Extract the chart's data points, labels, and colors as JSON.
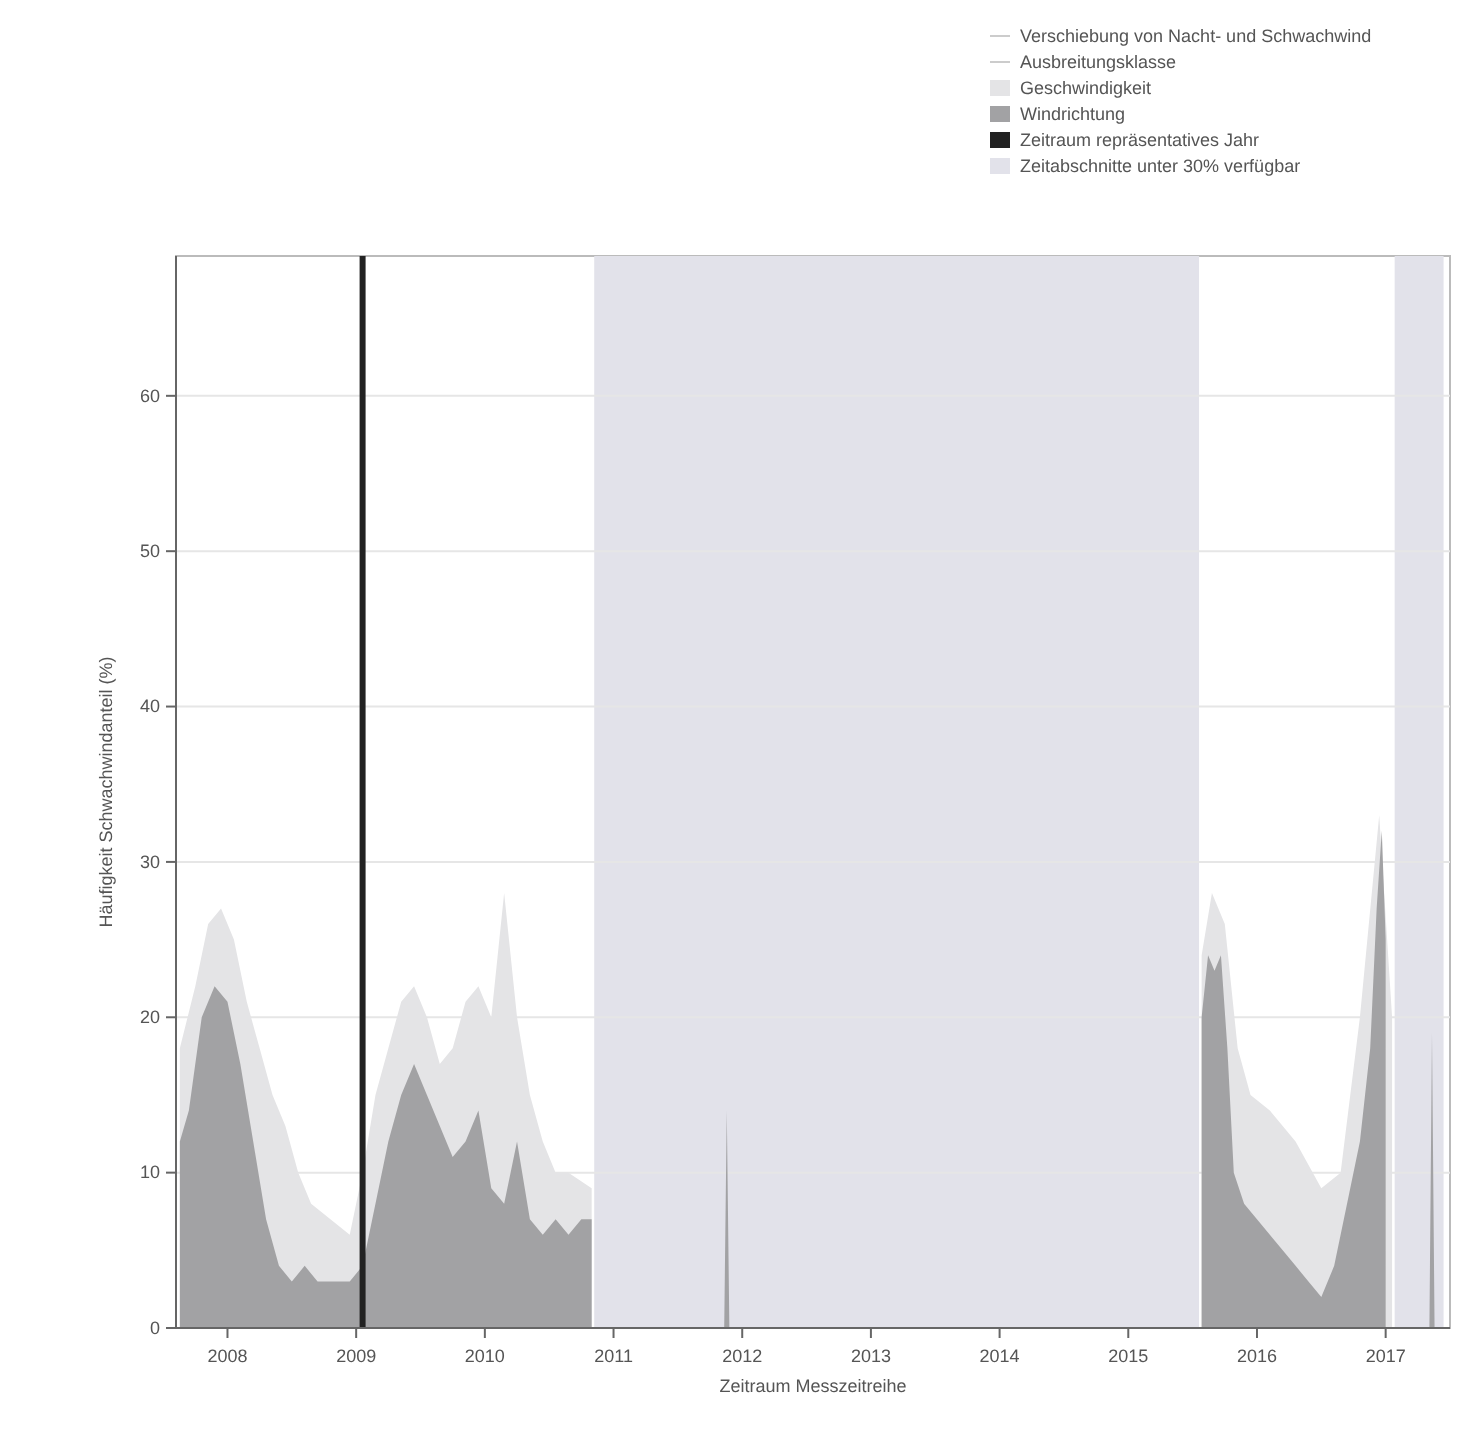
{
  "chart_data": {
    "type": "area",
    "xlabel": "Zeitraum Messzeitreihe",
    "ylabel": "Häufigkeit Schwachwindanteil (%)",
    "xlim": [
      2007.6,
      2017.5
    ],
    "xticks": [
      2008,
      2009,
      2010,
      2011,
      2012,
      2013,
      2014,
      2015,
      2016,
      2017
    ],
    "ylim": [
      0,
      69
    ],
    "yticks": [
      0,
      10,
      20,
      30,
      40,
      50,
      60
    ],
    "grid": "y",
    "legend": "top right",
    "annotations": [
      "Verschiebung von Nacht- und Schwachwind",
      "Ausbreitungsklasse"
    ],
    "series": [
      {
        "name": "Geschwindigkeit",
        "color": "#e4e4e6",
        "x": [
          2007.63,
          2007.75,
          2007.85,
          2007.95,
          2008.05,
          2008.15,
          2008.25,
          2008.35,
          2008.45,
          2008.55,
          2008.65,
          2008.8,
          2008.95,
          2009.05,
          2009.15,
          2009.25,
          2009.35,
          2009.45,
          2009.55,
          2009.65,
          2009.75,
          2009.85,
          2009.95,
          2010.05,
          2010.15,
          2010.25,
          2010.35,
          2010.45,
          2010.55,
          2010.65,
          2010.83,
          2010.87,
          2015.57,
          2015.65,
          2015.75,
          2015.85,
          2015.95,
          2016.1,
          2016.3,
          2016.5,
          2016.65,
          2016.8,
          2016.95,
          2017.05
        ],
        "values": [
          18,
          22,
          26,
          27,
          25,
          21,
          18,
          15,
          13,
          10,
          8,
          7,
          6,
          10,
          15,
          18,
          21,
          22,
          20,
          17,
          18,
          21,
          22,
          20,
          28,
          20,
          15,
          12,
          10,
          10,
          9,
          null,
          24,
          28,
          26,
          18,
          15,
          14,
          12,
          9,
          10,
          20,
          33,
          20
        ]
      },
      {
        "name": "Windrichtung",
        "color": "#a2a2a4",
        "x": [
          2007.63,
          2007.7,
          2007.8,
          2007.9,
          2008.0,
          2008.1,
          2008.2,
          2008.3,
          2008.4,
          2008.5,
          2008.6,
          2008.7,
          2008.8,
          2008.95,
          2009.05,
          2009.15,
          2009.25,
          2009.35,
          2009.45,
          2009.55,
          2009.65,
          2009.75,
          2009.85,
          2009.95,
          2010.05,
          2010.15,
          2010.25,
          2010.35,
          2010.45,
          2010.55,
          2010.65,
          2010.75,
          2010.83,
          2010.87,
          2011.86,
          2011.88,
          2011.9,
          2011.92,
          2015.57,
          2015.62,
          2015.67,
          2015.72,
          2015.77,
          2015.82,
          2015.9,
          2016.0,
          2016.1,
          2016.2,
          2016.3,
          2016.4,
          2016.5,
          2016.6,
          2016.7,
          2016.8,
          2016.88,
          2016.93,
          2016.97,
          2017.0,
          2017.05,
          2017.34,
          2017.36,
          2017.38
        ],
        "values": [
          12,
          14,
          20,
          22,
          21,
          17,
          12,
          7,
          4,
          3,
          4,
          3,
          3,
          3,
          4,
          8,
          12,
          15,
          17,
          15,
          13,
          11,
          12,
          14,
          9,
          8,
          12,
          7,
          6,
          7,
          6,
          7,
          7,
          null,
          0,
          14,
          0,
          null,
          20,
          24,
          23,
          24,
          18,
          10,
          8,
          7,
          6,
          5,
          4,
          3,
          2,
          4,
          8,
          12,
          18,
          27,
          32,
          25,
          null,
          0,
          19,
          0
        ]
      }
    ],
    "ref_lines": [
      {
        "axis": "x",
        "value": 2009.05,
        "label": "Zeitraum repräsentatives Jahr",
        "color": "#222222"
      }
    ],
    "bands": [
      {
        "axis": "x",
        "from": 2010.85,
        "to": 2015.55,
        "label": "Zeitabschnitte unter 30% verfügbar",
        "color": "#e2e2ea"
      },
      {
        "axis": "x",
        "from": 2017.07,
        "to": 2017.45,
        "color": "#e2e2ea"
      }
    ]
  }
}
